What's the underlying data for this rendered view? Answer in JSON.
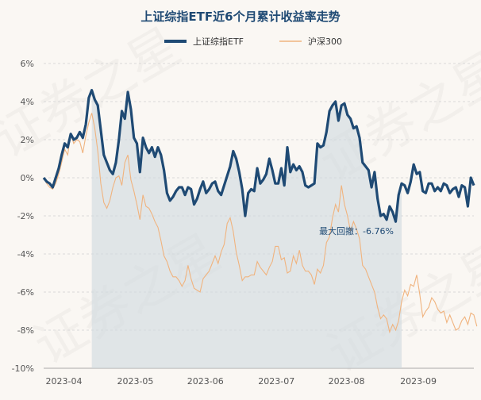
{
  "chart_data": {
    "type": "line",
    "title": "上证综指ETF近6个月累计收益率走势",
    "xlabel": "",
    "ylabel": "",
    "ylim": [
      -10,
      6
    ],
    "yticks": [
      6,
      4,
      2,
      0,
      -2,
      -4,
      -6,
      -8,
      -10
    ],
    "ytick_labels": [
      "6%",
      "4%",
      "2%",
      "0%",
      "-2%",
      "-4%",
      "-6%",
      "-8%",
      "-10%"
    ],
    "xticks": [
      "2023-04",
      "2023-05",
      "2023-06",
      "2023-07",
      "2023-08",
      "2023-09"
    ],
    "grid": true,
    "legend_position": "top-center",
    "colors": {
      "etf": "#1f4a74",
      "hs300": "#f0b37e",
      "drawdown_fill": "#cfd8e0"
    },
    "series": [
      {
        "name": "上证综指ETF",
        "values": [
          0,
          -0.2,
          -0.3,
          -0.5,
          0,
          0.5,
          1.2,
          1.8,
          1.6,
          2.3,
          2,
          2.1,
          2.4,
          2.1,
          2.8,
          4.2,
          4.6,
          4.1,
          3.8,
          2.5,
          1.2,
          0.8,
          0.4,
          0.2,
          0.8,
          2,
          3.5,
          3.1,
          4.5,
          3.6,
          2.1,
          1.8,
          0.3,
          2.1,
          1.6,
          1.3,
          1.6,
          1.1,
          1.6,
          1.2,
          0.4,
          -0.8,
          -1.2,
          -1,
          -0.7,
          -0.5,
          -0.5,
          -0.9,
          -0.5,
          -0.6,
          -1.4,
          -1.1,
          -0.6,
          -0.2,
          -0.8,
          -0.6,
          -0.3,
          -0.2,
          -0.7,
          -0.9,
          -0.4,
          0.1,
          0.6,
          1.4,
          1,
          0.3,
          -0.6,
          -2,
          -0.8,
          -0.6,
          -0.7,
          0.5,
          -0.3,
          -0.1,
          0.2,
          1,
          0.4,
          -0.3,
          -0.3,
          0.5,
          -0.4,
          1.6,
          0.3,
          0.7,
          0.4,
          0.6,
          0.3,
          -0.4,
          -0.5,
          -0.4,
          -0.3,
          1.8,
          1.6,
          1.7,
          2.4,
          3.5,
          3.8,
          4,
          3,
          3.8,
          3.9,
          3.3,
          3.1,
          2.6,
          2.7,
          2.1,
          0.8,
          0.6,
          0.4,
          -0.5,
          0.3,
          -1.1,
          -2,
          -1.9,
          -2.2,
          -1.5,
          -1.8,
          -2.3,
          -0.9,
          -0.3,
          -0.4,
          -0.8,
          -0.2,
          0.7,
          0.2,
          0.3,
          -0.7,
          -0.8,
          -0.3,
          -0.3,
          -0.7,
          -0.5,
          -0.7,
          -0.3,
          -0.4,
          -0.8,
          -0.6,
          -0.5,
          -1,
          -0.4,
          -0.5,
          -1.5,
          0,
          -0.4
        ]
      },
      {
        "name": "沪深300",
        "values": [
          0,
          -0.3,
          -0.5,
          -0.6,
          -0.3,
          0.2,
          0.8,
          1.5,
          1.2,
          2.3,
          1.8,
          2,
          1.9,
          1.3,
          2.2,
          2.9,
          3.4,
          2.6,
          1.4,
          -0.3,
          -1.3,
          -1.6,
          -1.2,
          -0.5,
          0,
          0.1,
          -0.4,
          0.8,
          1.2,
          -0.1,
          -0.7,
          -1.4,
          -2.2,
          -0.9,
          -1.5,
          -1.6,
          -1.9,
          -2.3,
          -2.6,
          -3.3,
          -4.1,
          -4.4,
          -4.9,
          -5.2,
          -5.2,
          -5.4,
          -5.7,
          -5.4,
          -4.6,
          -5.3,
          -5.8,
          -5.9,
          -6,
          -5.3,
          -5.1,
          -4.9,
          -4.5,
          -4.1,
          -4.5,
          -3.9,
          -3.5,
          -2.4,
          -2.1,
          -2.8,
          -3.9,
          -4.6,
          -5.4,
          -5.2,
          -5.2,
          -5.1,
          -5.1,
          -4.4,
          -4.7,
          -4.9,
          -5.1,
          -4.7,
          -4.4,
          -3.6,
          -3.6,
          -4.3,
          -4.2,
          -5,
          -4.9,
          -4.1,
          -4.5,
          -3.8,
          -4.6,
          -4.9,
          -4.9,
          -5.1,
          -5.6,
          -4.8,
          -5,
          -4.6,
          -3.4,
          -3.1,
          -2.1,
          -1.4,
          -1.8,
          -0.4,
          -1.4,
          -2,
          -2.8,
          -2.3,
          -2.7,
          -3.2,
          -4.6,
          -4.8,
          -5.2,
          -5.6,
          -6,
          -6.8,
          -7.4,
          -7.2,
          -7.4,
          -8.1,
          -7.7,
          -8,
          -7.5,
          -6.5,
          -5.9,
          -6.2,
          -5.6,
          -5.7,
          -5.1,
          -6.1,
          -7.3,
          -7,
          -6.8,
          -6.3,
          -6.5,
          -6.9,
          -7.1,
          -7,
          -7.6,
          -7.2,
          -7.6,
          -8,
          -7.9,
          -7.5,
          -7.3,
          -7.7,
          -7.1,
          -7.2,
          -7.8
        ]
      }
    ],
    "annotations": [
      {
        "text": "最大回撤：-6.76%",
        "x_index": 119,
        "y": -2.8
      }
    ],
    "drawdown_region": {
      "start_index": 16,
      "end_index": 119
    }
  },
  "watermark": "证券之星"
}
